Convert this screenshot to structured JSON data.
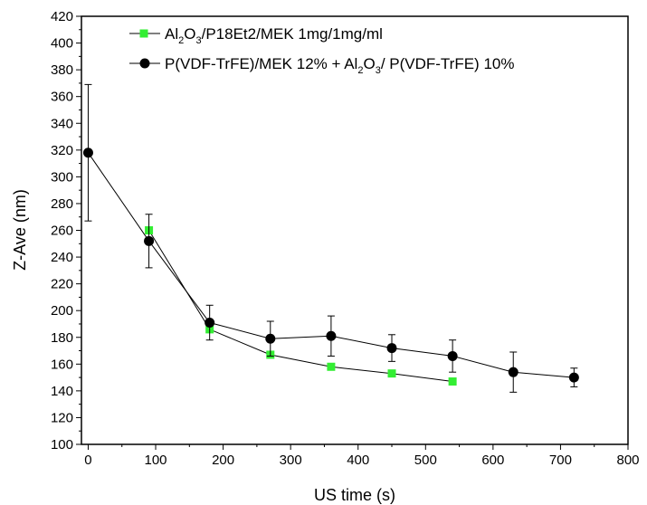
{
  "chart_data": {
    "type": "scatter",
    "xlabel": "US time (s)",
    "ylabel": "Z-Ave (nm)",
    "xlim": [
      -10,
      800
    ],
    "ylim": [
      100,
      420
    ],
    "xticks": [
      0,
      100,
      200,
      300,
      400,
      500,
      600,
      700,
      800
    ],
    "yticks": [
      100,
      120,
      140,
      160,
      180,
      200,
      220,
      240,
      260,
      280,
      300,
      320,
      340,
      360,
      380,
      400,
      420
    ],
    "grid": false,
    "legend_position": "top",
    "series": [
      {
        "name": "Al2O3/P18Et2/MEK 1mg/1mg/ml",
        "color": "#33ee33",
        "marker": "square",
        "line_color": "#000000",
        "x": [
          90,
          180,
          270,
          360,
          450,
          540
        ],
        "y": [
          260,
          186,
          167,
          158,
          153,
          147
        ]
      },
      {
        "name": "P(VDF-TrFE)/MEK 12% + Al2O3/ P(VDF-TrFE) 10%",
        "color": "#000000",
        "marker": "circle",
        "line_color": "#000000",
        "x": [
          0,
          90,
          180,
          270,
          360,
          450,
          540,
          630,
          720
        ],
        "y": [
          318,
          252,
          191,
          179,
          181,
          172,
          166,
          154,
          150
        ],
        "error": [
          51,
          20,
          13,
          13,
          15,
          10,
          12,
          15,
          7
        ]
      }
    ]
  }
}
